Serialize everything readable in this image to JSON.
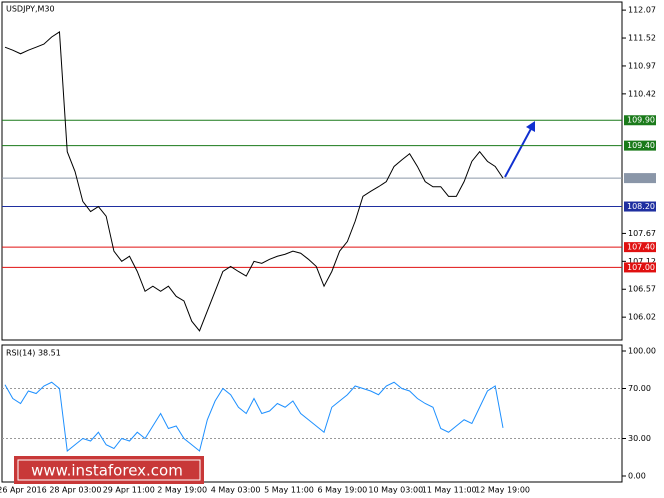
{
  "chart_data": [
    {
      "type": "line",
      "title": "USDJPY,M30",
      "color": "#000000",
      "ylim": [
        105.57,
        112.23
      ],
      "yticks": [
        {
          "value": 112.07,
          "label": "112.07"
        },
        111.52,
        110.97,
        110.42,
        107.67,
        107.12,
        106.57,
        106.02
      ],
      "levels": [
        {
          "value": 109.9,
          "label": "109.90",
          "color": "#1a7a1a"
        },
        {
          "value": 109.4,
          "label": "109.40",
          "color": "#1a7a1a"
        },
        {
          "value": 108.76,
          "color": "#8a96a8"
        },
        {
          "value": 108.2,
          "label": "108.20",
          "color": "#1f2fa0"
        },
        {
          "value": 107.4,
          "label": "107.40",
          "color": "#e01010"
        },
        {
          "value": 107,
          "label": "107.00",
          "color": "#e01010"
        }
      ],
      "values": [
        111.34,
        111.28,
        111.21,
        111.28,
        111.34,
        111.4,
        111.54,
        111.64,
        109.28,
        108.89,
        108.3,
        108.1,
        108.2,
        108.01,
        107.32,
        107.12,
        107.22,
        106.92,
        106.53,
        106.63,
        106.53,
        106.63,
        106.43,
        106.34,
        105.94,
        105.75,
        106.14,
        106.53,
        106.92,
        107.02,
        106.92,
        106.83,
        107.12,
        107.08,
        107.16,
        107.22,
        107.26,
        107.32,
        107.28,
        107.16,
        107.02,
        106.63,
        106.92,
        107.32,
        107.51,
        107.91,
        108.4,
        108.5,
        108.59,
        108.69,
        108.99,
        109.12,
        109.24,
        108.99,
        108.69,
        108.59,
        108.59,
        108.4,
        108.4,
        108.69,
        109.09,
        109.28,
        109.09,
        108.99,
        108.76
      ]
    },
    {
      "type": "line",
      "title": "RSI(14) 38.51",
      "color": "#1e90ff",
      "ylim": [
        -4.8,
        104.8
      ],
      "yticks": [
        {
          "value": 100,
          "label": "100.00"
        },
        {
          "value": 70,
          "label": "70.00"
        },
        {
          "value": 30,
          "label": "30.00"
        },
        {
          "value": 0,
          "label": "0.00"
        }
      ],
      "x_labels": [
        "26 Apr 2016",
        "28 Apr 03:00",
        "29 Apr 11:00",
        "2 May 19:00",
        "4 May 03:00",
        "5 May 11:00",
        "6 May 19:00",
        "10 May 03:00",
        "11 May 11:00",
        "12 May 19:00"
      ],
      "values": [
        73,
        62,
        58,
        68,
        66,
        72,
        75,
        70,
        20,
        25,
        30,
        28,
        35,
        25,
        22,
        30,
        28,
        35,
        30,
        40,
        50,
        38,
        40,
        30,
        25,
        20,
        45,
        60,
        70,
        65,
        55,
        50,
        62,
        50,
        52,
        58,
        55,
        60,
        50,
        45,
        40,
        35,
        55,
        60,
        65,
        72,
        70,
        68,
        65,
        72,
        75,
        70,
        68,
        62,
        58,
        55,
        38,
        35,
        40,
        45,
        42,
        55,
        68,
        72,
        38.51
      ]
    }
  ],
  "watermark": "www.instaforex.com"
}
